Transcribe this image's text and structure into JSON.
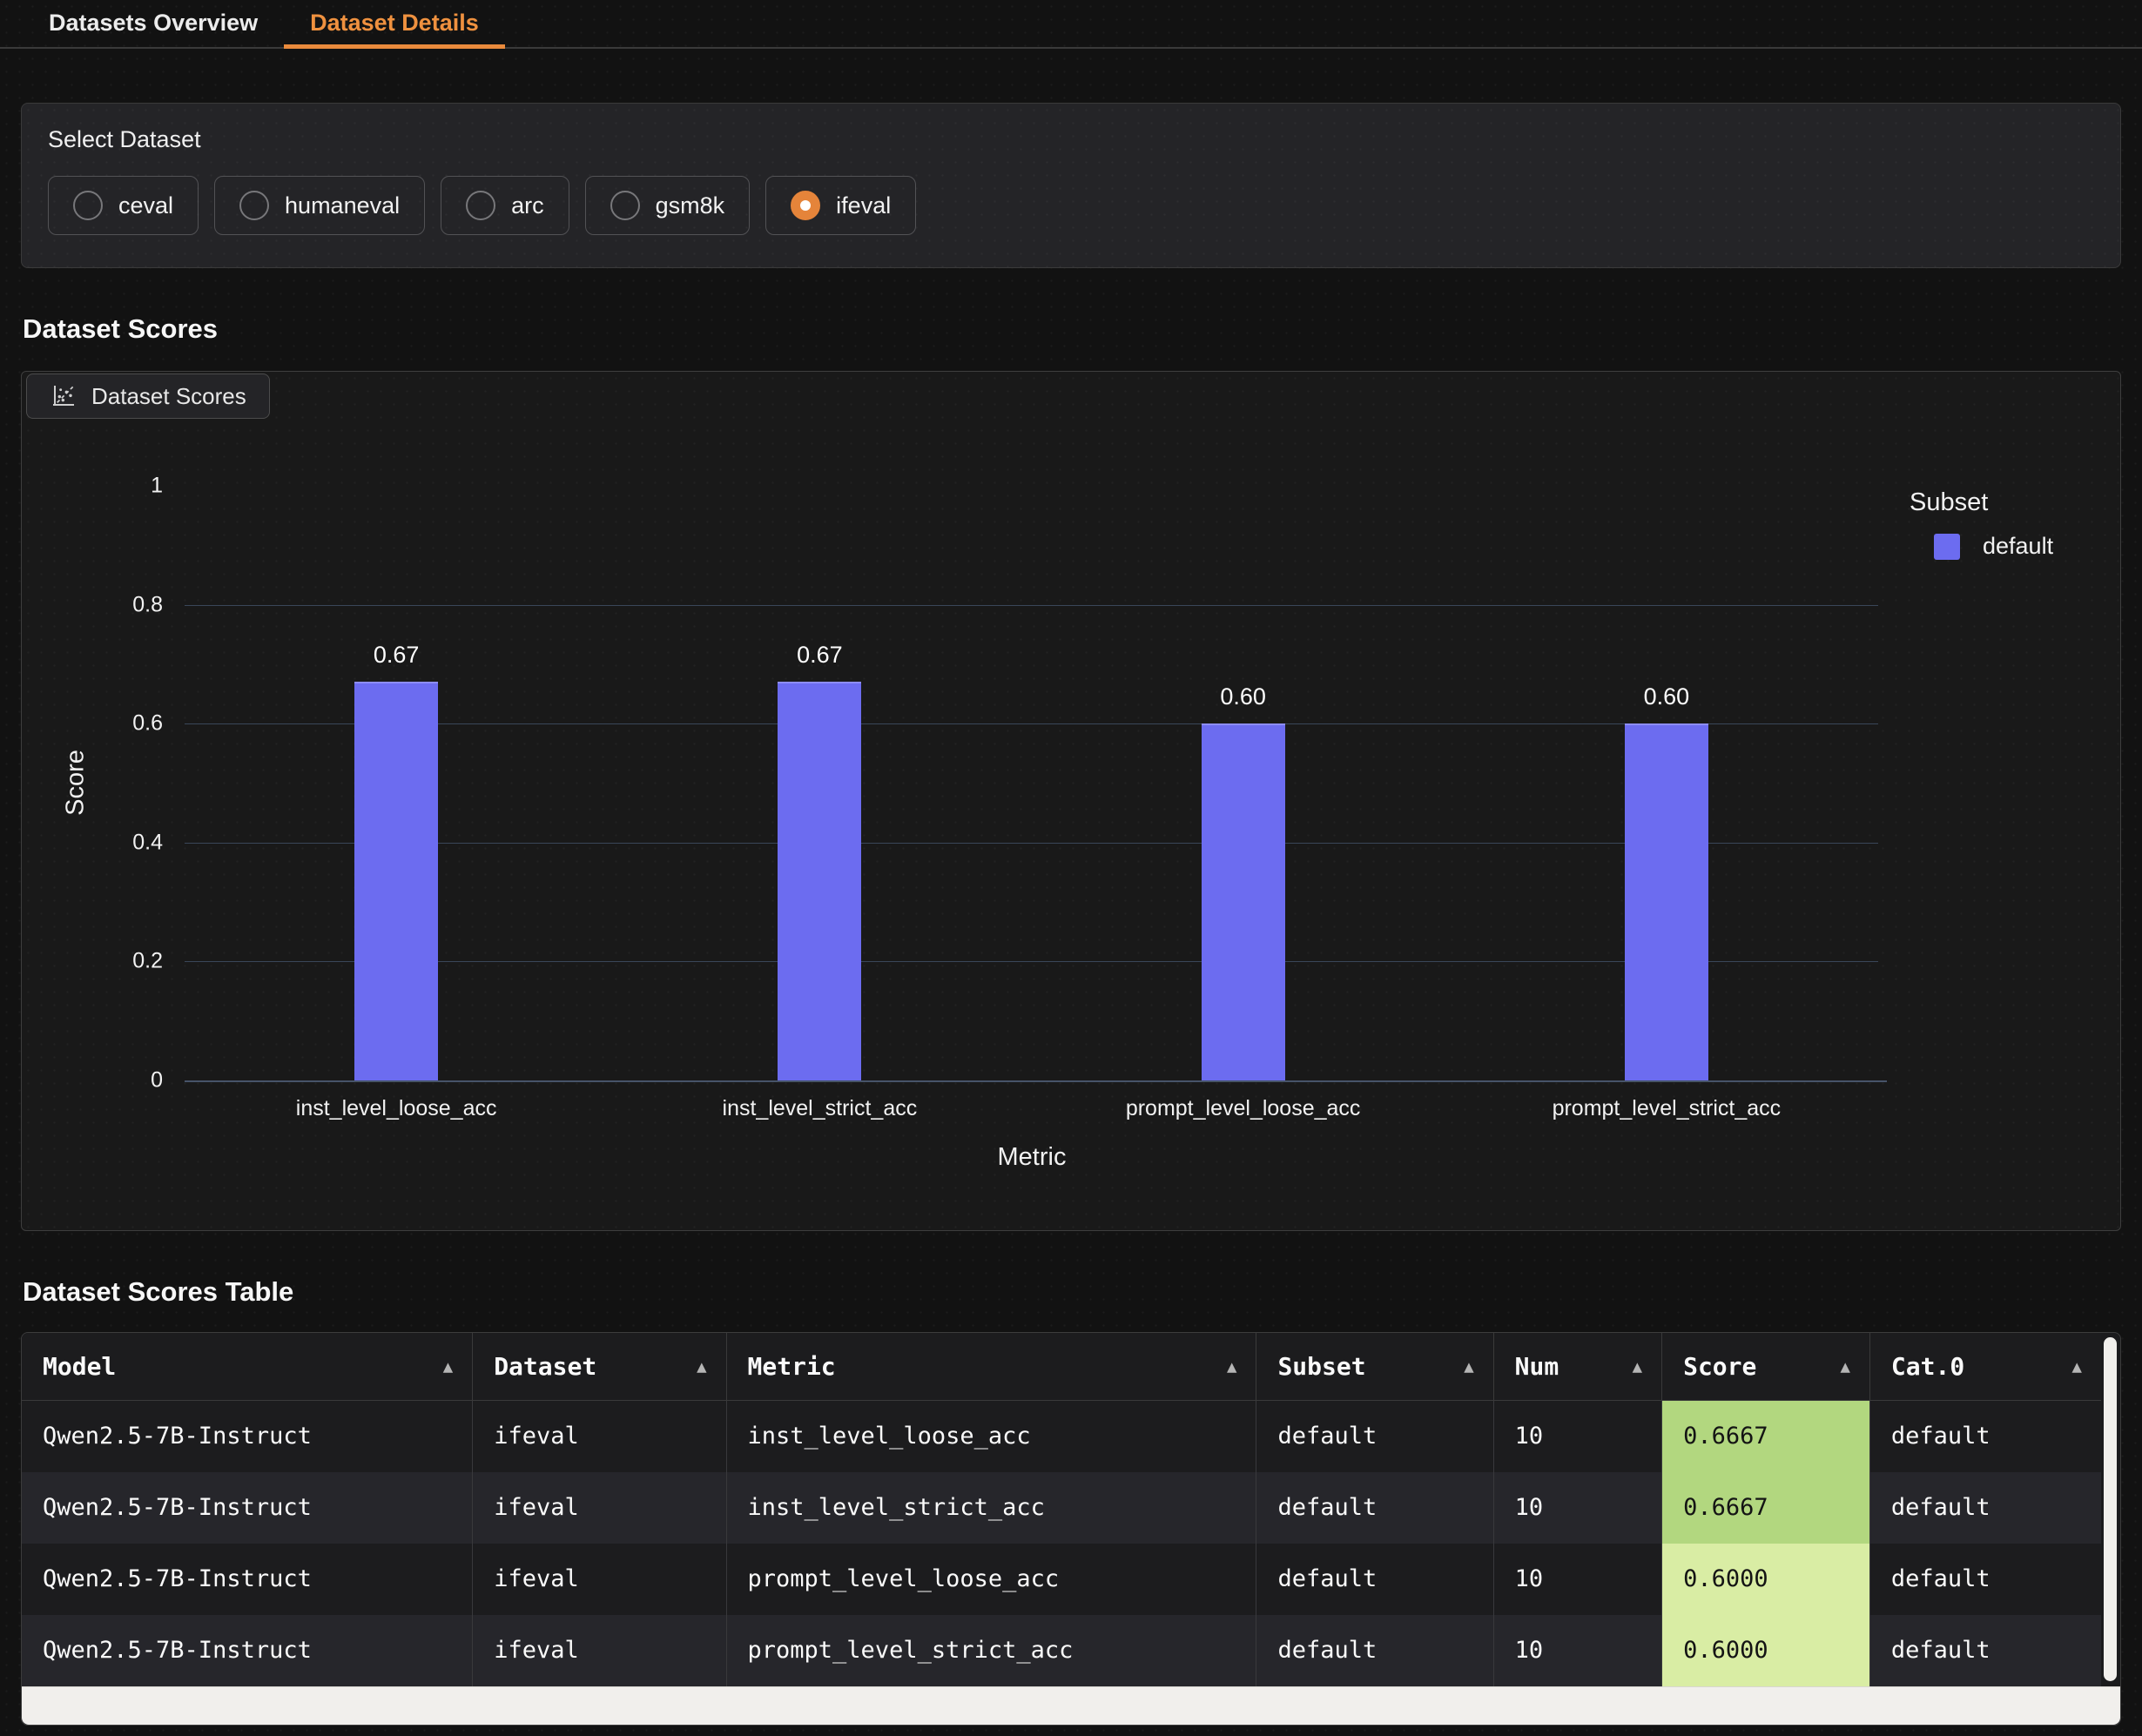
{
  "tabs": [
    {
      "label": "Datasets Overview",
      "active": false
    },
    {
      "label": "Dataset Details",
      "active": true
    }
  ],
  "select_dataset": {
    "label": "Select Dataset",
    "options": [
      {
        "label": "ceval",
        "selected": false
      },
      {
        "label": "humaneval",
        "selected": false
      },
      {
        "label": "arc",
        "selected": false
      },
      {
        "label": "gsm8k",
        "selected": false
      },
      {
        "label": "ifeval",
        "selected": true
      }
    ]
  },
  "sections": {
    "scores_heading": "Dataset Scores",
    "table_heading": "Dataset Scores Table"
  },
  "chart_panel": {
    "tab_label": "Dataset Scores"
  },
  "chart_data": {
    "type": "bar",
    "title": "Dataset Scores",
    "categories": [
      "inst_level_loose_acc",
      "inst_level_strict_acc",
      "prompt_level_loose_acc",
      "prompt_level_strict_acc"
    ],
    "series": [
      {
        "name": "default",
        "values": [
          0.67,
          0.67,
          0.6,
          0.6
        ],
        "color": "#6c6cf0"
      }
    ],
    "value_labels": [
      "0.67",
      "0.67",
      "0.60",
      "0.60"
    ],
    "xlabel": "Metric",
    "ylabel": "Score",
    "ylim": [
      0,
      1
    ],
    "yticks": [
      0,
      0.2,
      0.4,
      0.6,
      0.8,
      1
    ],
    "ytick_labels": [
      "0",
      "0.2",
      "0.4",
      "0.6",
      "0.8",
      "1"
    ],
    "grid": true,
    "legend": {
      "title": "Subset",
      "position": "right",
      "entries": [
        {
          "label": "default",
          "color": "#6c6cf0"
        }
      ]
    }
  },
  "table": {
    "columns": [
      "Model",
      "Dataset",
      "Metric",
      "Subset",
      "Num",
      "Score",
      "Cat.0"
    ],
    "sort_icon": "▲",
    "rows": [
      {
        "cells": [
          "Qwen2.5-7B-Instruct",
          "ifeval",
          "inst_level_loose_acc",
          "default",
          "10",
          "0.6667",
          "default"
        ],
        "score_color": "#b2d77f"
      },
      {
        "cells": [
          "Qwen2.5-7B-Instruct",
          "ifeval",
          "inst_level_strict_acc",
          "default",
          "10",
          "0.6667",
          "default"
        ],
        "score_color": "#b2d77f"
      },
      {
        "cells": [
          "Qwen2.5-7B-Instruct",
          "ifeval",
          "prompt_level_loose_acc",
          "default",
          "10",
          "0.6000",
          "default"
        ],
        "score_color": "#d9eda4"
      },
      {
        "cells": [
          "Qwen2.5-7B-Instruct",
          "ifeval",
          "prompt_level_strict_acc",
          "default",
          "10",
          "0.6000",
          "default"
        ],
        "score_color": "#d9eda4"
      }
    ]
  },
  "colors": {
    "accent_orange": "#e98a3c",
    "bar_purple": "#6c6cf0",
    "score_green_high": "#b2d77f",
    "score_green_low": "#d9eda4",
    "gridline": "#3a4759"
  }
}
